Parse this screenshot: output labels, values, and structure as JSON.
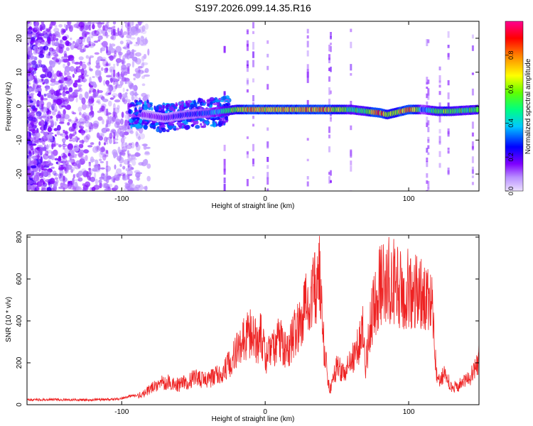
{
  "figure_title": "S197.2026.099.14.35.R16",
  "chart_data": [
    {
      "type": "heatmap",
      "title": "S197.2026.099.14.35.R16",
      "xlabel": "Height of straight line (km)",
      "ylabel": "Frequency (Hz)",
      "xlim": [
        -166,
        149
      ],
      "ylim": [
        -25,
        25
      ],
      "x_ticks": [
        -100,
        0,
        100
      ],
      "y_ticks": [
        -20,
        -10,
        0,
        10,
        20
      ],
      "colorbar": {
        "label": "Normalized spectral amplitude",
        "range": [
          0,
          1
        ],
        "ticks": [
          0.0,
          0.2,
          0.4,
          0.6,
          0.8
        ],
        "tick_labels": [
          "0.0",
          "0.2",
          "0.4",
          "0.6",
          "0.8"
        ],
        "colors": [
          "#b9a1ff",
          "#7f00ff",
          "#0000ff",
          "#00c8ff",
          "#00ff80",
          "#80ff00",
          "#ffff00",
          "#ff8000",
          "#ff0000",
          "#ff0080"
        ]
      },
      "ridge": {
        "description": "dominant frequency trace",
        "x": [
          -85,
          -70,
          -55,
          -40,
          -30,
          -20,
          -10,
          0,
          20,
          40,
          60,
          70,
          80,
          85,
          90,
          100,
          110,
          120,
          130,
          149
        ],
        "frequency": [
          -2.5,
          -3.5,
          -2.5,
          -2,
          -1.5,
          -1,
          -1,
          -1,
          -1,
          -1,
          -1,
          -1.5,
          -2,
          -2.5,
          -2,
          -1,
          -1,
          -1.5,
          -1.5,
          -1
        ],
        "amplitude": [
          0.15,
          0.2,
          0.25,
          0.3,
          0.45,
          0.6,
          0.8,
          0.7,
          0.75,
          0.8,
          0.5,
          0.55,
          0.9,
          0.7,
          0.6,
          0.9,
          0.3,
          0.6,
          0.55,
          0.5
        ]
      }
    },
    {
      "type": "line",
      "xlabel": "Height of straight line (km)",
      "ylabel": "SNR (10 * v/v)",
      "xlim": [
        -166,
        149
      ],
      "ylim": [
        0,
        810
      ],
      "x_ticks": [
        -100,
        0,
        100
      ],
      "y_ticks": [
        0,
        200,
        400,
        600,
        800
      ],
      "line_color": "#ee2222",
      "series": [
        {
          "name": "SNR",
          "x": [
            -166,
            -150,
            -130,
            -110,
            -100,
            -95,
            -90,
            -85,
            -78,
            -70,
            -60,
            -50,
            -40,
            -30,
            -25,
            -20,
            -15,
            -10,
            -5,
            -3,
            0,
            5,
            10,
            15,
            20,
            25,
            28,
            30,
            33,
            36,
            38,
            40,
            42,
            45,
            50,
            55,
            60,
            65,
            68,
            70,
            72,
            75,
            80,
            85,
            90,
            95,
            100,
            105,
            108,
            112,
            114,
            116,
            118,
            120,
            125,
            130,
            135,
            140,
            145,
            149
          ],
          "values": [
            22,
            25,
            23,
            25,
            30,
            40,
            45,
            60,
            100,
            130,
            110,
            150,
            140,
            180,
            230,
            300,
            360,
            410,
            330,
            430,
            260,
            310,
            370,
            290,
            390,
            470,
            540,
            640,
            620,
            690,
            760,
            430,
            250,
            80,
            220,
            170,
            240,
            330,
            410,
            200,
            360,
            540,
            660,
            700,
            690,
            640,
            660,
            640,
            620,
            600,
            640,
            600,
            300,
            120,
            180,
            90,
            110,
            130,
            180,
            270
          ]
        }
      ]
    }
  ]
}
